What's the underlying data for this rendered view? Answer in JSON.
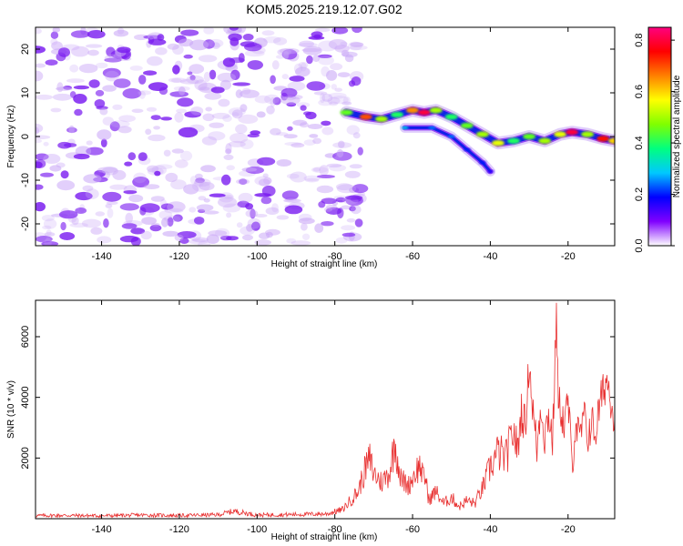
{
  "chart_data": [
    {
      "type": "heatmap",
      "title": "KOM5.2025.219.12.07.G02",
      "xlabel": "Height of straight line (km)",
      "ylabel": "Frequency (Hz)",
      "xlim": [
        -157,
        -8
      ],
      "ylim": [
        -25,
        25
      ],
      "x_ticks": [
        -140,
        -120,
        -100,
        -80,
        -60,
        -40,
        -20
      ],
      "y_ticks": [
        -20,
        -10,
        0,
        10,
        20
      ],
      "colorbar": {
        "label": "Normalized spectral amplitude",
        "range": [
          0.0,
          0.85
        ],
        "ticks": [
          0.0,
          0.2,
          0.4,
          0.6,
          0.8
        ],
        "colors": [
          "#ffffff",
          "#8000ff",
          "#0000ff",
          "#00c8ff",
          "#00ff80",
          "#80ff00",
          "#ffff00",
          "#ff8000",
          "#ff0000",
          "#ff0080"
        ]
      },
      "noise_region": {
        "x_range": [
          -157,
          -73
        ],
        "y_range": [
          -25,
          25
        ],
        "amplitude_range": [
          0.0,
          0.12
        ]
      },
      "signal_track": [
        {
          "x": -77,
          "y": 5.5,
          "amp": 0.45
        },
        {
          "x": -72,
          "y": 4.5,
          "amp": 0.7
        },
        {
          "x": -68,
          "y": 4.0,
          "amp": 0.5
        },
        {
          "x": -64,
          "y": 5.0,
          "amp": 0.4
        },
        {
          "x": -60,
          "y": 6.0,
          "amp": 0.65
        },
        {
          "x": -57,
          "y": 5.5,
          "amp": 0.8
        },
        {
          "x": -54,
          "y": 6.0,
          "amp": 0.5
        },
        {
          "x": -50,
          "y": 4.5,
          "amp": 0.4
        },
        {
          "x": -46,
          "y": 2.5,
          "amp": 0.45
        },
        {
          "x": -42,
          "y": 0.5,
          "amp": 0.5
        },
        {
          "x": -38,
          "y": -1.5,
          "amp": 0.55
        },
        {
          "x": -34,
          "y": -1.0,
          "amp": 0.4
        },
        {
          "x": -30,
          "y": 0.0,
          "amp": 0.45
        },
        {
          "x": -26,
          "y": -1.0,
          "amp": 0.5
        },
        {
          "x": -22,
          "y": 0.5,
          "amp": 0.55
        },
        {
          "x": -19,
          "y": 1.0,
          "amp": 0.8
        },
        {
          "x": -15,
          "y": 0.5,
          "amp": 0.5
        },
        {
          "x": -11,
          "y": -0.5,
          "amp": 0.75
        },
        {
          "x": -8,
          "y": -1.0,
          "amp": 0.6
        }
      ],
      "secondary_track": [
        {
          "x": -62,
          "y": 2.0,
          "amp": 0.3
        },
        {
          "x": -55,
          "y": 2.0,
          "amp": 0.25
        },
        {
          "x": -50,
          "y": 0.0,
          "amp": 0.25
        },
        {
          "x": -46,
          "y": -3.0,
          "amp": 0.2
        },
        {
          "x": -42,
          "y": -6.0,
          "amp": 0.2
        },
        {
          "x": -40,
          "y": -8.0,
          "amp": 0.15
        }
      ]
    },
    {
      "type": "line",
      "xlabel": "Height of straight line (km)",
      "ylabel": "SNR (10 * v/v)",
      "xlim": [
        -157,
        -8
      ],
      "ylim": [
        0,
        7200
      ],
      "x_ticks": [
        -140,
        -120,
        -100,
        -80,
        -60,
        -40,
        -20
      ],
      "y_ticks": [
        2000,
        4000,
        6000
      ],
      "series": [
        {
          "name": "SNR",
          "color": "#e83030",
          "x": [
            -157,
            -150,
            -140,
            -130,
            -120,
            -110,
            -106,
            -100,
            -90,
            -82,
            -78,
            -76,
            -74,
            -72,
            -71,
            -70,
            -68,
            -66,
            -64.5,
            -63,
            -61,
            -59,
            -58,
            -57,
            -56.5,
            -56,
            -54,
            -52,
            -50,
            -48,
            -46,
            -44,
            -42,
            -40,
            -38,
            -36,
            -34,
            -33,
            -32,
            -31,
            -30,
            -29,
            -28,
            -27,
            -26,
            -25,
            -24,
            -23.5,
            -23,
            -22.5,
            -22,
            -21,
            -20,
            -19,
            -18,
            -17,
            -16,
            -15,
            -14,
            -13,
            -12,
            -11,
            -10,
            -9,
            -8
          ],
          "y": [
            100,
            110,
            95,
            120,
            105,
            130,
            250,
            120,
            140,
            160,
            300,
            600,
            900,
            1700,
            1950,
            1500,
            1200,
            1500,
            2500,
            1300,
            1100,
            1600,
            1750,
            1200,
            1450,
            600,
            900,
            500,
            700,
            400,
            600,
            500,
            1000,
            1700,
            2200,
            2000,
            2900,
            2200,
            3600,
            3000,
            5200,
            3500,
            2300,
            3800,
            2700,
            3500,
            2600,
            4300,
            7100,
            3500,
            3800,
            3000,
            3900,
            1800,
            3200,
            2500,
            3400,
            2700,
            3200,
            2800,
            3600,
            4200,
            4600,
            4000,
            3300
          ]
        }
      ]
    }
  ]
}
